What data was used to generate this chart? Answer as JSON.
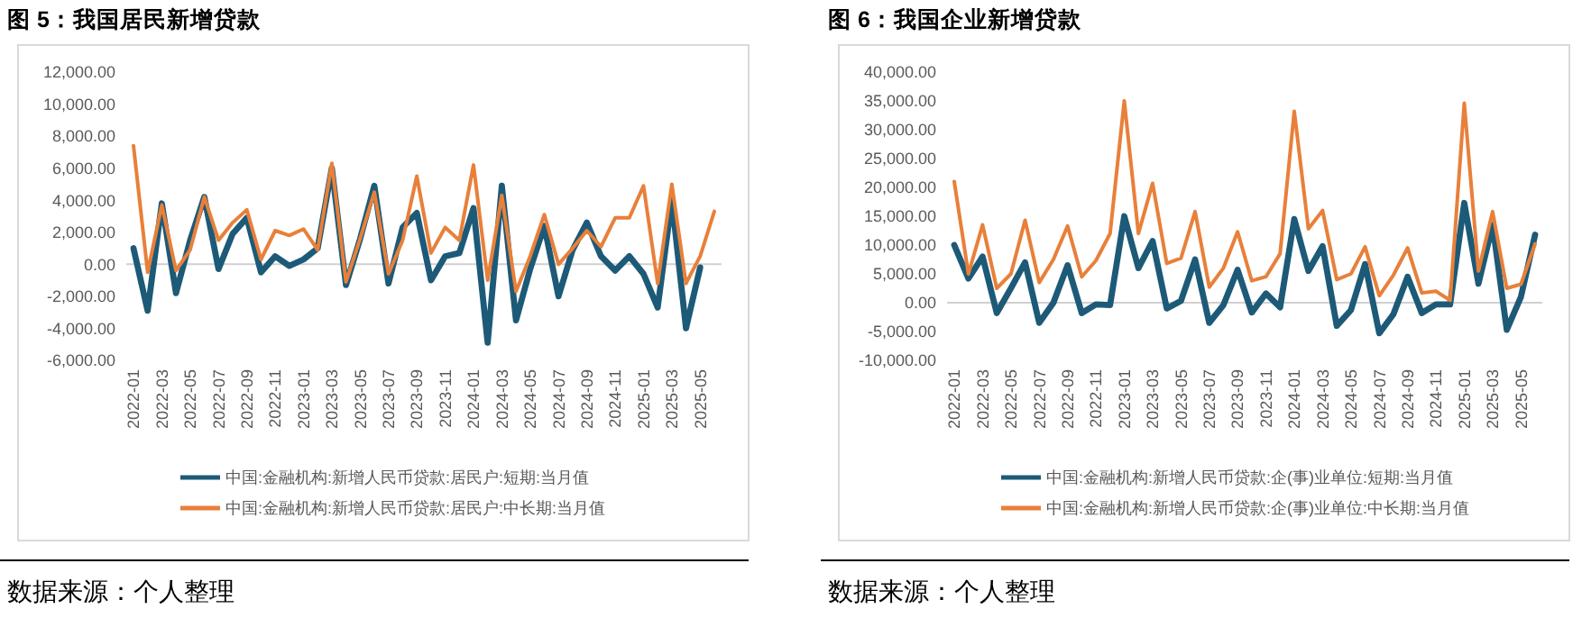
{
  "chart_data": [
    {
      "type": "line",
      "title": "图 5：我国居民新增贷款",
      "categories": [
        "2022-01",
        null,
        "2022-03",
        null,
        "2022-05",
        null,
        "2022-07",
        null,
        "2022-09",
        null,
        "2022-11",
        null,
        "2023-01",
        null,
        "2023-03",
        null,
        "2023-05",
        null,
        "2023-07",
        null,
        "2023-09",
        null,
        "2023-11",
        null,
        "2024-01",
        null,
        "2024-03",
        null,
        "2024-05",
        null,
        "2024-07",
        null,
        "2024-09",
        null,
        "2024-11",
        null,
        "2025-01",
        null,
        "2025-03",
        null,
        "2025-05",
        null
      ],
      "series": [
        {
          "name": "中国:金融机构:新增人民币贷款:居民户:短期:当月值",
          "color": "#1d5a78",
          "values": [
            1000,
            -2900,
            3800,
            -1800,
            1500,
            4200,
            -300,
            1900,
            2900,
            -500,
            500,
            -100,
            300,
            1000,
            6000,
            -1300,
            1600,
            4900,
            -1200,
            2300,
            3200,
            -1000,
            500,
            700,
            3500,
            -4900,
            4900,
            -3500,
            -300,
            2400,
            -2000,
            900,
            2600,
            500,
            -400,
            500,
            -600,
            -2700,
            4000,
            -4000,
            -200,
            null
          ]
        },
        {
          "name": "中国:金融机构:新增人民币贷款:居民户:中长期:当月值",
          "color": "#e8803a",
          "values": [
            7400,
            -500,
            3700,
            -400,
            900,
            4200,
            1500,
            2600,
            3400,
            300,
            2100,
            1800,
            2200,
            900,
            6300,
            -1100,
            1600,
            4500,
            -600,
            1500,
            5500,
            700,
            2300,
            1500,
            6200,
            -1000,
            4300,
            -1700,
            500,
            3100,
            0,
            1000,
            2100,
            1100,
            2900,
            2900,
            4900,
            -1200,
            5000,
            -1200,
            500,
            3300
          ]
        }
      ],
      "ylim": [
        -6000,
        12000
      ],
      "yticks": [
        {
          "value": -6000,
          "label": "-6,000.00"
        },
        {
          "value": -4000,
          "label": "-4,000.00"
        },
        {
          "value": -2000,
          "label": "-2,000.00"
        },
        {
          "value": 0,
          "label": "0.00"
        },
        {
          "value": 2000,
          "label": "2,000.00"
        },
        {
          "value": 4000,
          "label": "4,000.00"
        },
        {
          "value": 6000,
          "label": "6,000.00"
        },
        {
          "value": 8000,
          "label": "8,000.00"
        },
        {
          "value": 10000,
          "label": "10,000.00"
        },
        {
          "value": 12000,
          "label": "12,000.00"
        }
      ],
      "legend": "bottom",
      "marker": "none",
      "annotations": [
        "数据来源：个人整理"
      ]
    },
    {
      "type": "line",
      "title": "图 6：我国企业新增贷款",
      "categories": [
        "2022-01",
        null,
        "2022-03",
        null,
        "2022-05",
        null,
        "2022-07",
        null,
        "2022-09",
        null,
        "2022-11",
        null,
        "2023-01",
        null,
        "2023-03",
        null,
        "2023-05",
        null,
        "2023-07",
        null,
        "2023-09",
        null,
        "2023-11",
        null,
        "2024-01",
        null,
        "2024-03",
        null,
        "2024-05",
        null,
        "2024-07",
        null,
        "2024-09",
        null,
        "2024-11",
        null,
        "2025-01",
        null,
        "2025-03",
        null,
        "2025-05",
        null
      ],
      "series": [
        {
          "name": "中国:金融机构:新增人民币贷款:企(事)业单位:短期:当月值",
          "color": "#1d5a78",
          "values": [
            10000,
            4200,
            8000,
            -1800,
            2500,
            7000,
            -3500,
            0,
            6500,
            -1800,
            -300,
            -400,
            15000,
            6000,
            10700,
            -1000,
            300,
            7500,
            -3500,
            -400,
            5700,
            -1700,
            1600,
            -800,
            14500,
            5500,
            9800,
            -4000,
            -1300,
            6700,
            -5300,
            -2000,
            4500,
            -1800,
            -300,
            -300,
            17300,
            3300,
            13500,
            -4700,
            1000,
            11800
          ]
        },
        {
          "name": "中国:金融机构:新增人民币贷款:企(事)业单位:中长期:当月值",
          "color": "#e8803a",
          "values": [
            21000,
            5000,
            13500,
            2500,
            5000,
            14300,
            3500,
            7500,
            13300,
            4500,
            7300,
            12000,
            35000,
            12000,
            20700,
            6800,
            7700,
            15800,
            2700,
            6000,
            12300,
            3800,
            4500,
            8500,
            33200,
            12800,
            16000,
            4000,
            5000,
            9700,
            1200,
            4800,
            9500,
            1700,
            2000,
            400,
            34600,
            5500,
            15800,
            2500,
            3200,
            10200
          ]
        }
      ],
      "ylim": [
        -10000,
        40000
      ],
      "yticks": [
        {
          "value": -10000,
          "label": "-10,000.00"
        },
        {
          "value": -5000,
          "label": "-5,000.00"
        },
        {
          "value": 0,
          "label": "0.00"
        },
        {
          "value": 5000,
          "label": "5,000.00"
        },
        {
          "value": 10000,
          "label": "10,000.00"
        },
        {
          "value": 15000,
          "label": "15,000.00"
        },
        {
          "value": 20000,
          "label": "20,000.00"
        },
        {
          "value": 25000,
          "label": "25,000.00"
        },
        {
          "value": 30000,
          "label": "30,000.00"
        },
        {
          "value": 35000,
          "label": "35,000.00"
        },
        {
          "value": 40000,
          "label": "40,000.00"
        }
      ],
      "legend": "bottom",
      "marker": "none",
      "annotations": [
        "数据来源：个人整理"
      ]
    }
  ]
}
